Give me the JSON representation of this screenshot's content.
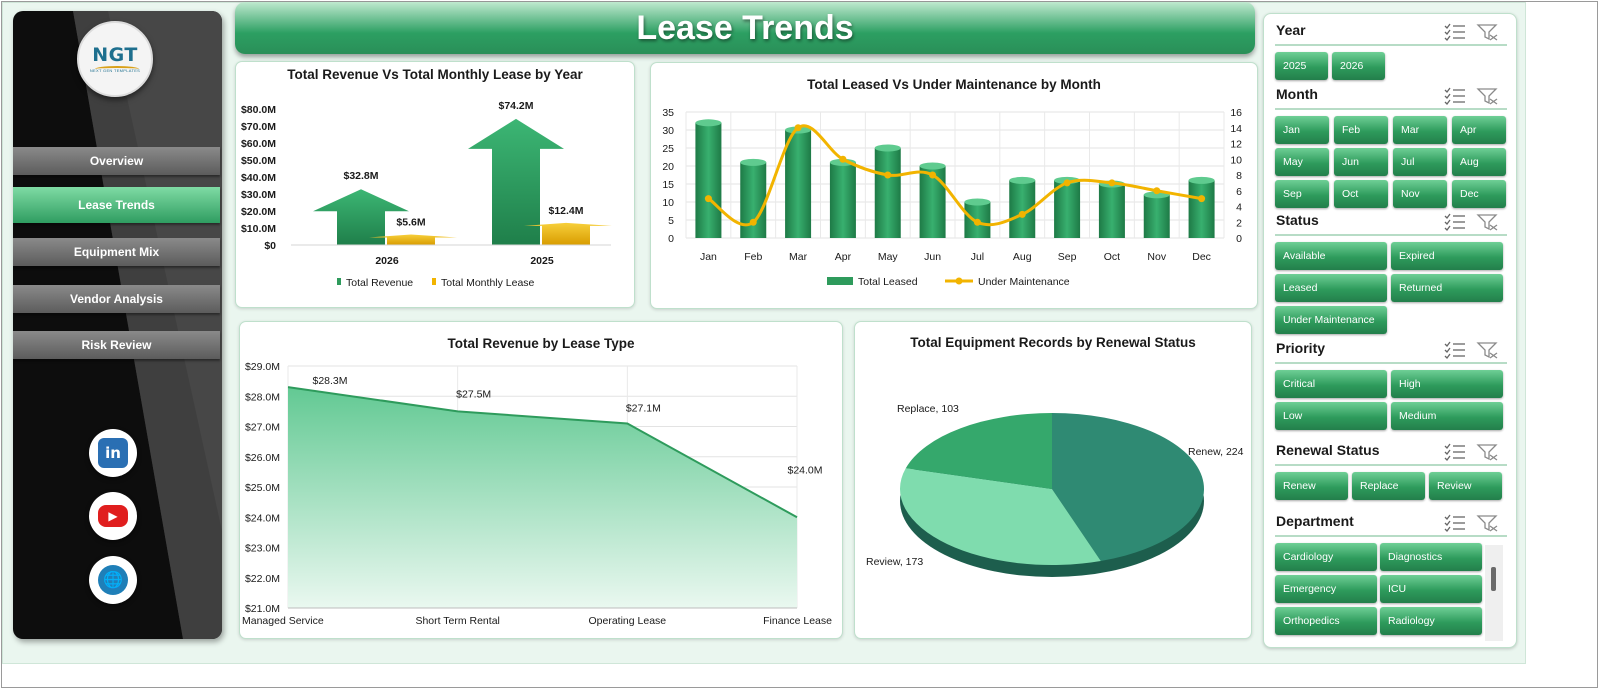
{
  "app": {
    "title": "Lease Trends",
    "logo": {
      "text": "NGT",
      "tagline": "NEXT GEN TEMPLATES"
    }
  },
  "sidebar": {
    "items": [
      {
        "label": "Overview",
        "active": false
      },
      {
        "label": "Lease Trends",
        "active": true
      },
      {
        "label": "Equipment Mix",
        "active": false
      },
      {
        "label": "Vendor Analysis",
        "active": false
      },
      {
        "label": "Risk Review",
        "active": false
      }
    ],
    "social": [
      {
        "name": "linkedin-icon",
        "glyph": "in",
        "color": "#2a6fb3"
      },
      {
        "name": "youtube-icon",
        "glyph": "▶",
        "color": "#e01e1e"
      },
      {
        "name": "globe-icon",
        "glyph": "🌐",
        "color": "#1f7fb8"
      }
    ]
  },
  "colors": {
    "accent": "#2e9b5c",
    "accent_light": "#7fdba4",
    "gold": "#f2b400",
    "teal": "#2f8a73"
  },
  "chart_data": [
    {
      "id": "rev_vs_lease",
      "type": "bar",
      "title": "Total Revenue Vs Total Monthly Lease by Year",
      "categories": [
        "2026",
        "2025"
      ],
      "series": [
        {
          "name": "Total Revenue",
          "values": [
            32.8,
            74.2
          ],
          "labels": [
            "$32.8M",
            "$74.2M"
          ]
        },
        {
          "name": "Total Monthly Lease",
          "values": [
            5.6,
            12.4
          ],
          "labels": [
            "$5.6M",
            "$12.4M"
          ]
        }
      ],
      "ylim": [
        0,
        80
      ],
      "yticks": [
        "$0",
        "$10.0M",
        "$20.0M",
        "$30.0M",
        "$40.0M",
        "$50.0M",
        "$60.0M",
        "$70.0M",
        "$80.0M"
      ],
      "legend": "bottom"
    },
    {
      "id": "leased_vs_maint",
      "type": "bar",
      "title": "Total Leased Vs Under Maintenance by Month",
      "categories": [
        "Jan",
        "Feb",
        "Mar",
        "Apr",
        "May",
        "Jun",
        "Jul",
        "Aug",
        "Sep",
        "Oct",
        "Nov",
        "Dec"
      ],
      "series": [
        {
          "name": "Total Leased",
          "type": "bar",
          "axis": "left",
          "values": [
            32,
            21,
            30,
            21,
            25,
            20,
            10,
            16,
            16,
            15,
            12,
            16
          ]
        },
        {
          "name": "Under Maintenance",
          "type": "line",
          "axis": "right",
          "values": [
            5,
            2,
            14,
            10,
            8,
            8,
            2,
            3,
            7,
            7,
            6,
            5
          ]
        }
      ],
      "ylim": [
        0,
        35
      ],
      "yticks": [
        "0",
        "5",
        "10",
        "15",
        "20",
        "25",
        "30",
        "35"
      ],
      "y2lim": [
        0,
        16
      ],
      "y2ticks": [
        "0",
        "2",
        "4",
        "6",
        "8",
        "10",
        "12",
        "14",
        "16"
      ],
      "legend": "bottom",
      "grid": true
    },
    {
      "id": "rev_by_type",
      "type": "area",
      "title": "Total Revenue by Lease Type",
      "categories": [
        "Managed Service",
        "Short Term Rental",
        "Operating Lease",
        "Finance Lease"
      ],
      "values": [
        28.3,
        27.5,
        27.1,
        24.0
      ],
      "labels": [
        "$28.3M",
        "$27.5M",
        "$27.1M",
        "$24.0M"
      ],
      "ylim": [
        21,
        29
      ],
      "yticks": [
        "$21.0M",
        "$22.0M",
        "$23.0M",
        "$24.0M",
        "$25.0M",
        "$26.0M",
        "$27.0M",
        "$28.0M",
        "$29.0M"
      ],
      "grid": true
    },
    {
      "id": "renewal_status",
      "type": "pie",
      "title": "Total Equipment Records by Renewal Status",
      "categories": [
        "Renew",
        "Review",
        "Replace"
      ],
      "values": [
        224,
        173,
        103
      ],
      "labels": [
        "Renew, 224",
        "Review, 173",
        "Replace, 103"
      ],
      "colors": [
        "#2f8a73",
        "#7fdcae",
        "#35a86c"
      ]
    }
  ],
  "slicers": [
    {
      "name": "Year",
      "items": [
        "2025",
        "2026"
      ]
    },
    {
      "name": "Month",
      "items": [
        "Jan",
        "Feb",
        "Mar",
        "Apr",
        "May",
        "Jun",
        "Jul",
        "Aug",
        "Sep",
        "Oct",
        "Nov",
        "Dec"
      ]
    },
    {
      "name": "Status",
      "items": [
        "Available",
        "Expired",
        "Leased",
        "Returned",
        "Under Maintenance"
      ]
    },
    {
      "name": "Priority",
      "items": [
        "Critical",
        "High",
        "Low",
        "Medium"
      ]
    },
    {
      "name": "Renewal Status",
      "items": [
        "Renew",
        "Replace",
        "Review"
      ]
    },
    {
      "name": "Department",
      "items": [
        "Cardiology",
        "Diagnostics",
        "Emergency",
        "ICU",
        "Orthopedics",
        "Radiology"
      ]
    }
  ]
}
